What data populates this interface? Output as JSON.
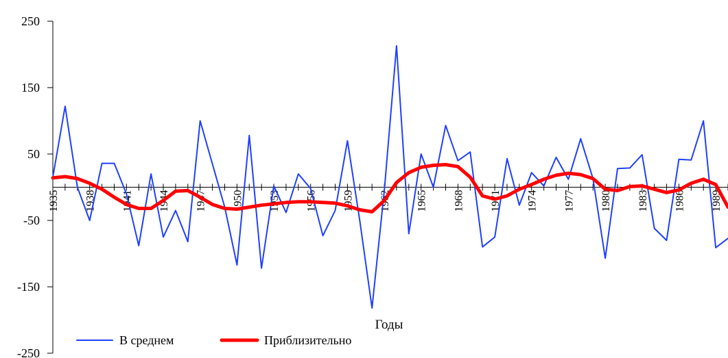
{
  "chart_data": {
    "type": "line",
    "xlabel": "Годы",
    "ylabel": "",
    "ylim": [
      -250,
      250
    ],
    "xlim": [
      1935,
      1990
    ],
    "y_ticks": [
      250,
      150,
      50,
      -50,
      -150,
      -250
    ],
    "x_ticks": [
      1935,
      1938,
      1941,
      1944,
      1947,
      1950,
      1953,
      1956,
      1959,
      1962,
      1965,
      1968,
      1971,
      1974,
      1977,
      1980,
      1983,
      1986,
      1989
    ],
    "legend_position": "bottom",
    "grid": false,
    "series": [
      {
        "name": "В среднем",
        "color": "#1f3fff",
        "x": [
          1935,
          1936,
          1937,
          1938,
          1939,
          1940,
          1941,
          1942,
          1943,
          1944,
          1945,
          1946,
          1947,
          1948,
          1949,
          1950,
          1951,
          1952,
          1953,
          1954,
          1955,
          1956,
          1957,
          1958,
          1959,
          1960,
          1961,
          1962,
          1963,
          1964,
          1965,
          1966,
          1967,
          1968,
          1969,
          1970,
          1971,
          1972,
          1973,
          1974,
          1975,
          1976,
          1977,
          1978,
          1979,
          1980,
          1981,
          1982,
          1983,
          1984,
          1985,
          1986,
          1987,
          1988,
          1989,
          1990
        ],
        "values": [
          15,
          122,
          0,
          -50,
          36,
          36,
          -10,
          -88,
          20,
          -75,
          -35,
          -82,
          100,
          35,
          -30,
          -117,
          78,
          -122,
          2,
          -38,
          20,
          -2,
          -73,
          -35,
          70,
          -50,
          -182,
          -5,
          213,
          -70,
          50,
          0,
          93,
          40,
          53,
          -90,
          -75,
          43,
          -27,
          22,
          2,
          45,
          12,
          73,
          13,
          -107,
          28,
          29,
          49,
          -62,
          -80,
          42,
          41,
          100,
          -91,
          -77
        ]
      },
      {
        "name": "Приблизительно",
        "color": "#ff0000",
        "x": [
          1935,
          1936,
          1937,
          1938,
          1939,
          1940,
          1941,
          1942,
          1943,
          1944,
          1945,
          1946,
          1947,
          1948,
          1949,
          1950,
          1951,
          1952,
          1953,
          1954,
          1955,
          1956,
          1957,
          1958,
          1959,
          1960,
          1961,
          1962,
          1963,
          1964,
          1965,
          1966,
          1967,
          1968,
          1969,
          1970,
          1971,
          1972,
          1973,
          1974,
          1975,
          1976,
          1977,
          1978,
          1979,
          1980,
          1981,
          1982,
          1983,
          1984,
          1985,
          1986,
          1987,
          1988,
          1989,
          1990
        ],
        "values": [
          14,
          16,
          13,
          6,
          -3,
          -15,
          -26,
          -32,
          -32,
          -20,
          -6,
          -5,
          -15,
          -26,
          -32,
          -33,
          -30,
          -27,
          -25,
          -23,
          -22,
          -22,
          -23,
          -24,
          -28,
          -34,
          -37,
          -20,
          7,
          22,
          30,
          33,
          34,
          31,
          15,
          -13,
          -18,
          -13,
          -3,
          4,
          12,
          18,
          21,
          19,
          13,
          -3,
          -5,
          1,
          2,
          -3,
          -8,
          -4,
          6,
          12,
          4,
          -30
        ]
      }
    ]
  }
}
